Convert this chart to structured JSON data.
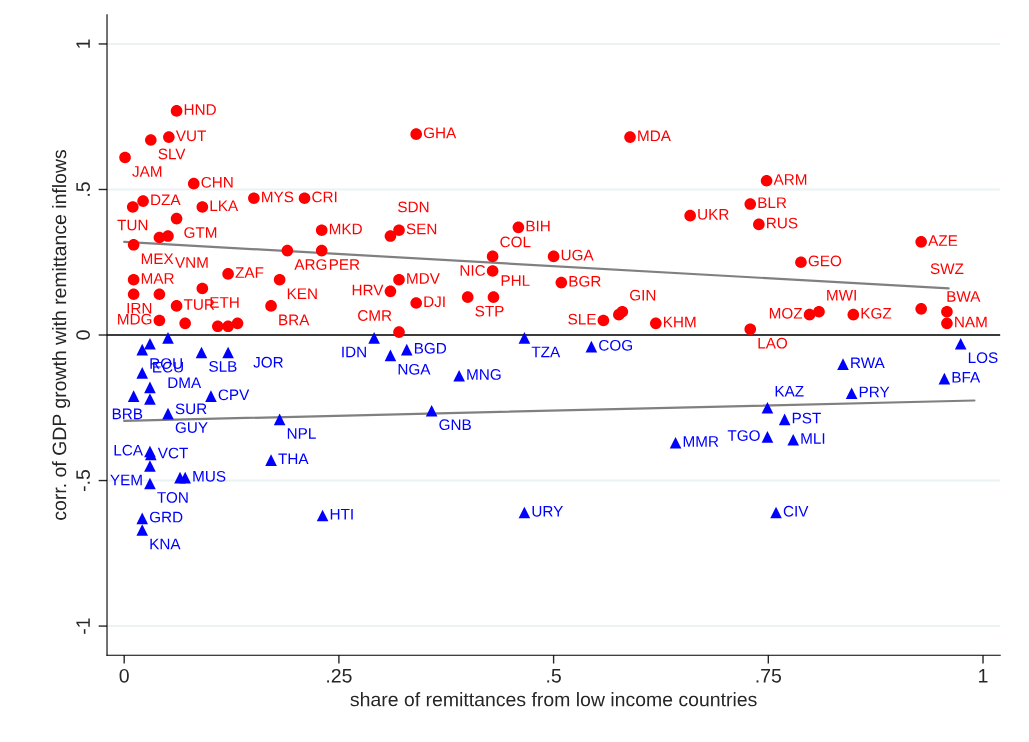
{
  "chart_data": {
    "type": "scatter",
    "xlabel": "share of remittances from low income countries",
    "ylabel": "corr. of GDP growth with remittance inflows",
    "xlim": [
      -0.02,
      1.02
    ],
    "ylim": [
      -1.1,
      1.1
    ],
    "xticks": [
      0,
      {
        "value": 0.25,
        "label": ".25"
      },
      {
        "value": 0.5,
        "label": ".5"
      },
      {
        "value": 0.75,
        "label": ".75"
      },
      1
    ],
    "yticks": [
      -1,
      {
        "value": -0.5,
        "label": "-.5"
      },
      0,
      {
        "value": 0.5,
        "label": ".5"
      },
      1
    ],
    "grid": "y",
    "ref_lines": [
      {
        "axis": "y",
        "value": 0,
        "color": "#000000"
      }
    ],
    "series": [
      {
        "marker": "circle",
        "color": "#ff0000",
        "x": [
          0.061,
          0.052,
          0.031,
          0.001,
          0.081,
          0.022,
          0.01,
          0.091,
          0.151,
          0.21,
          0.061,
          0.051,
          0.041,
          0.011,
          0.23,
          0.32,
          0.31,
          0.19,
          0.23,
          0.121,
          0.181,
          0.011,
          0.011,
          0.041,
          0.091,
          0.061,
          0.171,
          0.041,
          0.071,
          0.109,
          0.121,
          0.132,
          0.34,
          0.31,
          0.32,
          0.34,
          0.32,
          0.589,
          0.459,
          0.429,
          0.5,
          0.429,
          0.509,
          0.4,
          0.43,
          0.558,
          0.576,
          0.58,
          0.619,
          0.748,
          0.729,
          0.659,
          0.739,
          0.928,
          0.788,
          0.729,
          0.798,
          0.809,
          0.849,
          0.928,
          0.958,
          0.958
        ],
        "values": [
          0.77,
          0.68,
          0.67,
          0.61,
          0.52,
          0.46,
          0.44,
          0.44,
          0.47,
          0.47,
          0.4,
          0.34,
          0.335,
          0.31,
          0.36,
          0.36,
          0.34,
          0.29,
          0.29,
          0.21,
          0.19,
          0.19,
          0.14,
          0.14,
          0.16,
          0.1,
          0.1,
          0.05,
          0.04,
          0.03,
          0.03,
          0.04,
          0.69,
          0.15,
          0.19,
          0.11,
          0.01,
          0.68,
          0.37,
          0.27,
          0.27,
          0.22,
          0.18,
          0.13,
          0.13,
          0.05,
          0.07,
          0.08,
          0.04,
          0.53,
          0.45,
          0.41,
          0.38,
          0.32,
          0.25,
          0.02,
          0.07,
          0.08,
          0.07,
          0.09,
          0.08,
          0.04
        ]
      },
      {
        "marker": "triangle",
        "color": "#0000ff",
        "x": [
          0.051,
          0.021,
          0.03,
          0.09,
          0.121,
          0.021,
          0.03,
          0.011,
          0.03,
          0.101,
          0.051,
          0.181,
          0.03,
          0.031,
          0.03,
          0.071,
          0.065,
          0.03,
          0.171,
          0.021,
          0.021,
          0.231,
          0.291,
          0.31,
          0.329,
          0.39,
          0.466,
          0.544,
          0.358,
          0.466,
          0.642,
          0.749,
          0.769,
          0.749,
          0.779,
          0.759,
          0.837,
          0.847,
          0.955,
          0.974
        ],
        "values": [
          -0.01,
          -0.05,
          -0.03,
          -0.06,
          -0.06,
          -0.13,
          -0.18,
          -0.21,
          -0.22,
          -0.21,
          -0.27,
          -0.29,
          -0.4,
          -0.41,
          -0.45,
          -0.49,
          -0.49,
          -0.51,
          -0.43,
          -0.63,
          -0.67,
          -0.62,
          -0.01,
          -0.07,
          -0.05,
          -0.14,
          -0.01,
          -0.04,
          -0.26,
          -0.61,
          -0.37,
          -0.25,
          -0.29,
          -0.35,
          -0.36,
          -0.61,
          -0.1,
          -0.2,
          -0.15,
          -0.03
        ]
      },
      {
        "type": "line",
        "line_style": "solid",
        "color": "#808080",
        "x": [
          0,
          0.96
        ],
        "values": [
          0.32,
          0.16
        ]
      },
      {
        "type": "line",
        "line_style": "solid",
        "color": "#808080",
        "x": [
          0,
          0.99
        ],
        "values": [
          -0.295,
          -0.225
        ]
      }
    ],
    "annotations": [
      {
        "text": "HND",
        "x": 0.061,
        "y": 0.77
      },
      {
        "text": "VUT",
        "x": 0.052,
        "y": 0.68
      },
      {
        "text": "SLV",
        "x": 0.031,
        "y": 0.67
      },
      {
        "text": "JAM",
        "x": 0.001,
        "y": 0.61
      },
      {
        "text": "CHN",
        "x": 0.081,
        "y": 0.52
      },
      {
        "text": "DZA",
        "x": 0.022,
        "y": 0.46
      },
      {
        "text": "TUN",
        "x": 0.01,
        "y": 0.44
      },
      {
        "text": "LKA",
        "x": 0.091,
        "y": 0.44
      },
      {
        "text": "MYS",
        "x": 0.151,
        "y": 0.47
      },
      {
        "text": "CRI",
        "x": 0.21,
        "y": 0.47
      },
      {
        "text": "GTM",
        "x": 0.061,
        "y": 0.4
      },
      {
        "text": "VNM",
        "x": 0.051,
        "y": 0.34
      },
      {
        "text": "MEX",
        "x": 0.011,
        "y": 0.31
      },
      {
        "text": "MKD",
        "x": 0.23,
        "y": 0.36
      },
      {
        "text": "SEN",
        "x": 0.32,
        "y": 0.36
      },
      {
        "text": "SDN",
        "x": 0.31,
        "y": 0.34
      },
      {
        "text": "ARG",
        "x": 0.19,
        "y": 0.29
      },
      {
        "text": "PER",
        "x": 0.23,
        "y": 0.29
      },
      {
        "text": "ZAF",
        "x": 0.121,
        "y": 0.21
      },
      {
        "text": "KEN",
        "x": 0.181,
        "y": 0.19
      },
      {
        "text": "MAR",
        "x": 0.011,
        "y": 0.19
      },
      {
        "text": "IRN",
        "x": 0.041,
        "y": 0.14
      },
      {
        "text": "ETH",
        "x": 0.091,
        "y": 0.16
      },
      {
        "text": "TUR",
        "x": 0.061,
        "y": 0.1
      },
      {
        "text": "BRA",
        "x": 0.171,
        "y": 0.1
      },
      {
        "text": "MDG",
        "x": 0.041,
        "y": 0.05
      },
      {
        "text": "GHA",
        "x": 0.34,
        "y": 0.69
      },
      {
        "text": "HRV",
        "x": 0.31,
        "y": 0.15
      },
      {
        "text": "MDV",
        "x": 0.32,
        "y": 0.19
      },
      {
        "text": "DJI",
        "x": 0.34,
        "y": 0.11
      },
      {
        "text": "CMR",
        "x": 0.32,
        "y": 0.01
      },
      {
        "text": "MDA",
        "x": 0.589,
        "y": 0.68
      },
      {
        "text": "BIH",
        "x": 0.459,
        "y": 0.37
      },
      {
        "text": "NIC",
        "x": 0.429,
        "y": 0.27
      },
      {
        "text": "UGA",
        "x": 0.5,
        "y": 0.27
      },
      {
        "text": "COL",
        "x": 0.429,
        "y": 0.22
      },
      {
        "text": "BGR",
        "x": 0.509,
        "y": 0.18
      },
      {
        "text": "STP",
        "x": 0.4,
        "y": 0.13
      },
      {
        "text": "PHL",
        "x": 0.43,
        "y": 0.13
      },
      {
        "text": "SLE",
        "x": 0.558,
        "y": 0.05
      },
      {
        "text": "GIN",
        "x": 0.58,
        "y": 0.08
      },
      {
        "text": "KHM",
        "x": 0.619,
        "y": 0.04
      },
      {
        "text": "ARM",
        "x": 0.748,
        "y": 0.53
      },
      {
        "text": "BLR",
        "x": 0.729,
        "y": 0.45
      },
      {
        "text": "UKR",
        "x": 0.659,
        "y": 0.41
      },
      {
        "text": "RUS",
        "x": 0.739,
        "y": 0.38
      },
      {
        "text": "AZE",
        "x": 0.928,
        "y": 0.32
      },
      {
        "text": "GEO",
        "x": 0.788,
        "y": 0.25
      },
      {
        "text": "LAO",
        "x": 0.729,
        "y": 0.02
      },
      {
        "text": "MOZ",
        "x": 0.798,
        "y": 0.07
      },
      {
        "text": "MWI",
        "x": 0.809,
        "y": 0.08
      },
      {
        "text": "KGZ",
        "x": 0.849,
        "y": 0.07
      },
      {
        "text": "BWA",
        "x": 0.928,
        "y": 0.09
      },
      {
        "text": "SWZ",
        "x": 0.958,
        "y": 0.08
      },
      {
        "text": "NAM",
        "x": 0.958,
        "y": 0.04
      },
      {
        "text": "ECU",
        "x": 0.051,
        "y": -0.01
      },
      {
        "text": "ROU",
        "x": 0.021,
        "y": -0.05
      },
      {
        "text": "SLB",
        "x": 0.09,
        "y": -0.06
      },
      {
        "text": "JOR",
        "x": 0.121,
        "y": -0.06
      },
      {
        "text": "DMA",
        "x": 0.021,
        "y": -0.13
      },
      {
        "text": "BRB",
        "x": 0.03,
        "y": -0.18
      },
      {
        "text": "SUR",
        "x": 0.03,
        "y": -0.22
      },
      {
        "text": "CPV",
        "x": 0.101,
        "y": -0.21
      },
      {
        "text": "GUY",
        "x": 0.051,
        "y": -0.27
      },
      {
        "text": "NPL",
        "x": 0.181,
        "y": -0.29
      },
      {
        "text": "LCA",
        "x": 0.03,
        "y": -0.4
      },
      {
        "text": "VCT",
        "x": 0.031,
        "y": -0.41
      },
      {
        "text": "YEM",
        "x": 0.03,
        "y": -0.45
      },
      {
        "text": "MUS",
        "x": 0.071,
        "y": -0.49
      },
      {
        "text": "TON",
        "x": 0.03,
        "y": -0.51
      },
      {
        "text": "THA",
        "x": 0.171,
        "y": -0.43
      },
      {
        "text": "GRD",
        "x": 0.021,
        "y": -0.63
      },
      {
        "text": "KNA",
        "x": 0.021,
        "y": -0.67
      },
      {
        "text": "HTI",
        "x": 0.231,
        "y": -0.62
      },
      {
        "text": "IDN",
        "x": 0.291,
        "y": -0.01
      },
      {
        "text": "NGA",
        "x": 0.31,
        "y": -0.07
      },
      {
        "text": "BGD",
        "x": 0.329,
        "y": -0.05
      },
      {
        "text": "MNG",
        "x": 0.39,
        "y": -0.14
      },
      {
        "text": "TZA",
        "x": 0.466,
        "y": -0.01
      },
      {
        "text": "COG",
        "x": 0.544,
        "y": -0.04
      },
      {
        "text": "GNB",
        "x": 0.358,
        "y": -0.26
      },
      {
        "text": "URY",
        "x": 0.466,
        "y": -0.61
      },
      {
        "text": "MMR",
        "x": 0.642,
        "y": -0.37
      },
      {
        "text": "KAZ",
        "x": 0.749,
        "y": -0.25
      },
      {
        "text": "PST",
        "x": 0.769,
        "y": -0.29
      },
      {
        "text": "TGO",
        "x": 0.749,
        "y": -0.35
      },
      {
        "text": "MLI",
        "x": 0.779,
        "y": -0.36
      },
      {
        "text": "CIV",
        "x": 0.759,
        "y": -0.61
      },
      {
        "text": "RWA",
        "x": 0.837,
        "y": -0.1
      },
      {
        "text": "PRY",
        "x": 0.847,
        "y": -0.2
      },
      {
        "text": "BFA",
        "x": 0.955,
        "y": -0.15
      },
      {
        "text": "LOS",
        "x": 0.974,
        "y": -0.03
      }
    ]
  }
}
